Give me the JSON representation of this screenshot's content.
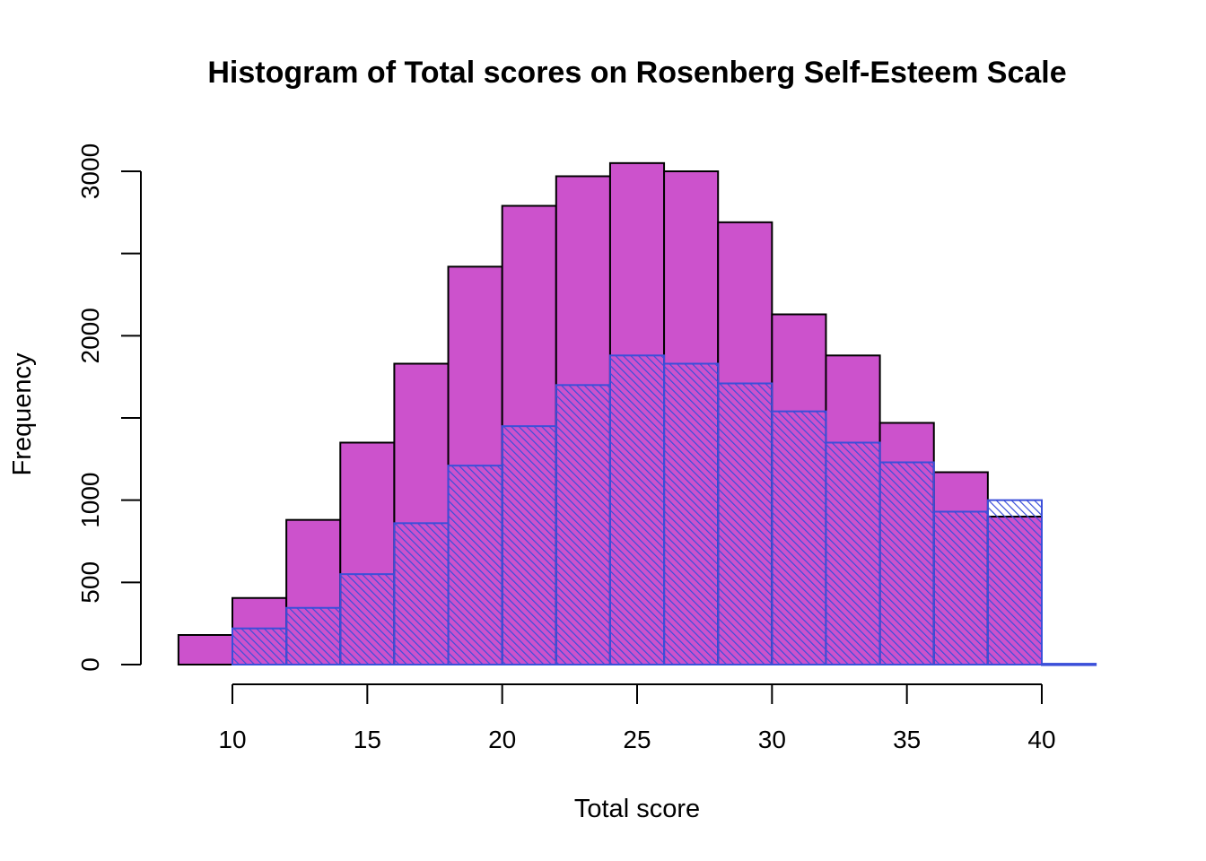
{
  "chart_data": {
    "type": "bar",
    "title": "Histogram of Total scores on Rosenberg Self-Esteem Scale",
    "xlabel": "Total score",
    "ylabel": "Frequency",
    "xlim": [
      8,
      42
    ],
    "ylim": [
      0,
      3000
    ],
    "xticks": [
      10,
      15,
      20,
      25,
      30,
      35,
      40
    ],
    "yticks": [
      0,
      500,
      1000,
      1500,
      2000,
      2500,
      3000
    ],
    "ytick_labels": [
      "0",
      "500",
      "1000",
      "",
      "2000",
      "",
      "3000"
    ],
    "bin_edges": [
      8,
      10,
      12,
      14,
      16,
      18,
      20,
      22,
      24,
      26,
      28,
      30,
      32,
      34,
      36,
      38,
      40,
      42
    ],
    "series": [
      {
        "fill": "solid",
        "color": "#cc52cc",
        "border": "#000000",
        "values": [
          180,
          405,
          880,
          1350,
          1830,
          2420,
          2790,
          2970,
          3050,
          3000,
          2690,
          2130,
          1880,
          1470,
          1170,
          900,
          0
        ]
      },
      {
        "fill": "hatched",
        "color": "#3b4fd9",
        "border": "#3b4fd9",
        "values": [
          0,
          220,
          345,
          550,
          860,
          1210,
          1450,
          1700,
          1880,
          1830,
          1710,
          1540,
          1350,
          1230,
          930,
          1000,
          5
        ]
      }
    ]
  }
}
